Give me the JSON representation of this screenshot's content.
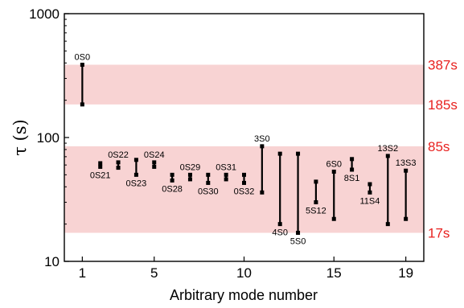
{
  "chart_data": {
    "type": "range",
    "y_scale": "log",
    "ylim": [
      10,
      1000
    ],
    "xlim": [
      0,
      20
    ],
    "ylabel": "τ (s)",
    "xlabel": "Arbitrary mode number",
    "y_ticks": [
      {
        "value": 10,
        "label": "10"
      },
      {
        "value": 100,
        "label": "100"
      },
      {
        "value": 1000,
        "label": "1000"
      }
    ],
    "x_ticks": [
      {
        "value": 1,
        "label": "1"
      },
      {
        "value": 5,
        "label": "5"
      },
      {
        "value": 10,
        "label": "10"
      },
      {
        "value": 15,
        "label": "15"
      },
      {
        "value": 19,
        "label": "19"
      }
    ],
    "bands": [
      {
        "low": 185,
        "high": 387,
        "color": "#f8d3d3"
      },
      {
        "low": 17,
        "high": 85,
        "color": "#f8d3d3"
      }
    ],
    "right_labels": [
      {
        "value": 387,
        "label": "387s"
      },
      {
        "value": 185,
        "label": "185s"
      },
      {
        "value": 85,
        "label": "85s"
      },
      {
        "value": 17,
        "label": "17s"
      }
    ],
    "right_label_color": "#e8211f",
    "bar_color": "#000000",
    "points": [
      {
        "x": 1,
        "low": 185,
        "high": 387,
        "label": "0S0",
        "label_pos": "top"
      },
      {
        "x": 2,
        "low": 58,
        "high": 62,
        "label": "0S21",
        "label_pos": "bottom"
      },
      {
        "x": 3,
        "low": 57,
        "high": 63,
        "label": "0S22",
        "label_pos": "top"
      },
      {
        "x": 4,
        "low": 50,
        "high": 66,
        "label": "0S23",
        "label_pos": "bottom"
      },
      {
        "x": 5,
        "low": 58,
        "high": 63,
        "label": "0S24",
        "label_pos": "top"
      },
      {
        "x": 6,
        "low": 45,
        "high": 50,
        "label": "0S28",
        "label_pos": "bottom"
      },
      {
        "x": 7,
        "low": 46,
        "high": 50,
        "label": "0S29",
        "label_pos": "top"
      },
      {
        "x": 8,
        "low": 43,
        "high": 50,
        "label": "0S30",
        "label_pos": "bottom"
      },
      {
        "x": 9,
        "low": 46,
        "high": 50,
        "label": "0S31",
        "label_pos": "top"
      },
      {
        "x": 10,
        "low": 43,
        "high": 50,
        "label": "0S32",
        "label_pos": "bottom"
      },
      {
        "x": 11,
        "low": 36,
        "high": 85,
        "label": "3S0",
        "label_pos": "top"
      },
      {
        "x": 12,
        "low": 20,
        "high": 74,
        "label": "4S0",
        "label_pos": "bottom"
      },
      {
        "x": 13,
        "low": 17,
        "high": 74,
        "label": "5S0",
        "label_pos": "bottom"
      },
      {
        "x": 14,
        "low": 30,
        "high": 44,
        "label": "5S12",
        "label_pos": "bottom"
      },
      {
        "x": 15,
        "low": 22,
        "high": 53,
        "label": "6S0",
        "label_pos": "top"
      },
      {
        "x": 16,
        "low": 55,
        "high": 67,
        "label": "8S1",
        "label_pos": "bottom"
      },
      {
        "x": 17,
        "low": 36,
        "high": 42,
        "label": "11S4",
        "label_pos": "bottom"
      },
      {
        "x": 18,
        "low": 20,
        "high": 71,
        "label": "13S2",
        "label_pos": "top"
      },
      {
        "x": 19,
        "low": 22,
        "high": 54,
        "label": "13S3",
        "label_pos": "top"
      }
    ]
  }
}
